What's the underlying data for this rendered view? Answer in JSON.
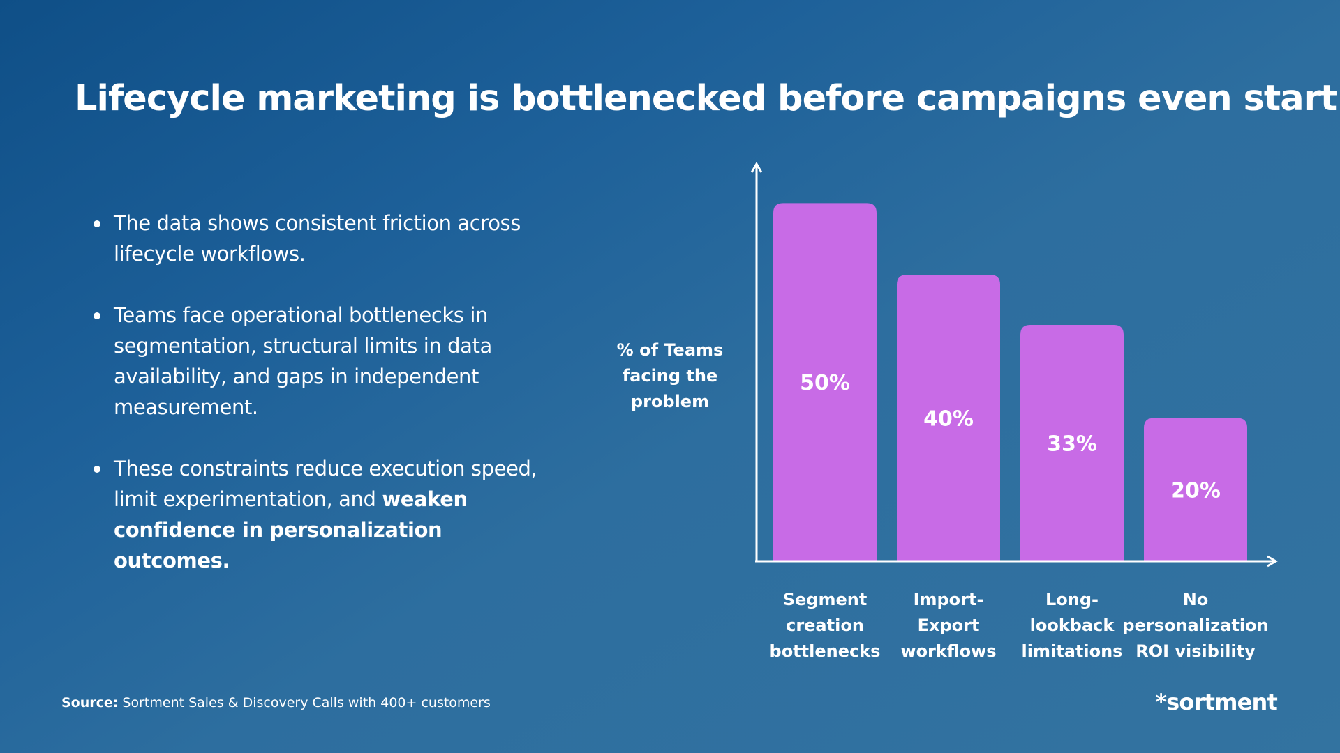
{
  "title": "Lifecycle marketing is bottlenecked before campaigns even start",
  "bullets": [
    {
      "text": "The data shows consistent friction across lifecycle workflows.",
      "bold": ""
    },
    {
      "text": "Teams face operational bottlenecks in segmentation, structural limits in data availability, and gaps in independent measurement.",
      "bold": ""
    },
    {
      "text": "These constraints reduce execution speed, limit experimentation, and ",
      "bold": "weaken confidence in personalization outcomes."
    }
  ],
  "source": {
    "label": "Source:",
    "text": " Sortment Sales & Discovery Calls with 400+ customers"
  },
  "logo": "*sortment",
  "colors": {
    "bar": "#c86be6",
    "background_start": "#0f4f87",
    "background_end": "#3373a0"
  },
  "chart_data": {
    "type": "bar",
    "title": "",
    "xlabel": "",
    "ylabel": "% of Teams facing the problem",
    "ylabel_lines": [
      "% of Teams",
      "facing the",
      "problem"
    ],
    "categories": [
      [
        "Segment",
        "creation",
        "bottlenecks"
      ],
      [
        "Import-",
        "Export",
        "workflows"
      ],
      [
        "Long-",
        "lookback",
        "limitations"
      ],
      [
        "No",
        "personalization",
        "ROI visibility"
      ]
    ],
    "values": [
      50,
      40,
      33,
      20
    ],
    "value_labels": [
      "50%",
      "40%",
      "33%",
      "20%"
    ],
    "ylim": [
      0,
      55
    ],
    "grid": false,
    "legend": "none"
  }
}
